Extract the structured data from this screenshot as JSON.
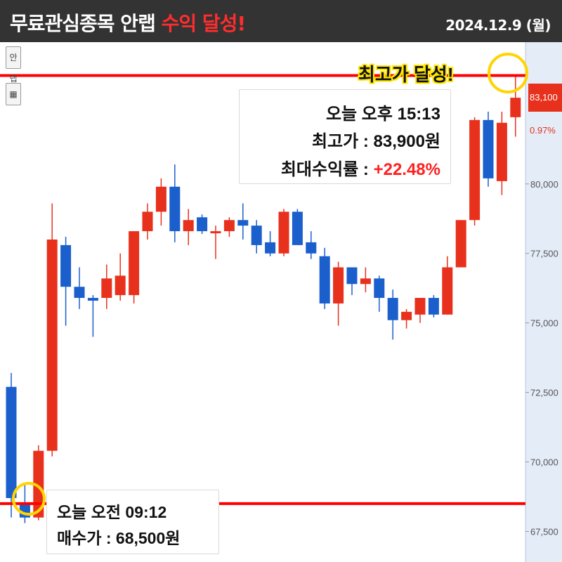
{
  "header": {
    "title_main": "무료관심종목 안랩 ",
    "title_highlight": "수익 달성!",
    "date": "2024.12.9 (월)"
  },
  "toolbar": {
    "name_tag": "안랩",
    "calc_icon": "calculator-icon"
  },
  "colors": {
    "up": "#e8311d",
    "down": "#1a5fcc",
    "line": "#ff0000",
    "highlight": "#ffd400",
    "header_bg": "#333333"
  },
  "peak_callout": {
    "time": "오늘 오후 15:13",
    "high_price": "최고가 : 83,900원",
    "max_return_label": "최대수익률 : ",
    "max_return_value": "+22.48%"
  },
  "buy_callout": {
    "time": "오늘 오전 09:12",
    "buy_price": "매수가 : 68,500원"
  },
  "peak_label": "최고가 달성!",
  "chart_data": {
    "type": "candlestick",
    "y_ticks": [
      67500,
      70000,
      72500,
      75000,
      77500,
      80000
    ],
    "y_tick_labels": [
      "67,500",
      "70,000",
      "72,500",
      "75,000",
      "77,500",
      "80,000"
    ],
    "ylim": [
      66400,
      85100
    ],
    "current_price_label": "83,100",
    "change_label": "0.97%",
    "reference_lines": [
      {
        "name": "high",
        "value": 83900
      },
      {
        "name": "buy",
        "value": 68500
      }
    ],
    "candles": [
      {
        "o": 72700,
        "h": 73200,
        "l": 68000,
        "c": 68700
      },
      {
        "o": 68500,
        "h": 69200,
        "l": 67800,
        "c": 68000
      },
      {
        "o": 68000,
        "h": 70600,
        "l": 67900,
        "c": 70400
      },
      {
        "o": 70400,
        "h": 79300,
        "l": 70200,
        "c": 78000
      },
      {
        "o": 77800,
        "h": 78100,
        "l": 74900,
        "c": 76300
      },
      {
        "o": 76300,
        "h": 77000,
        "l": 75500,
        "c": 75900
      },
      {
        "o": 75900,
        "h": 76000,
        "l": 74500,
        "c": 75800
      },
      {
        "o": 75900,
        "h": 77100,
        "l": 75500,
        "c": 76600
      },
      {
        "o": 76000,
        "h": 77500,
        "l": 75800,
        "c": 76700
      },
      {
        "o": 76000,
        "h": 78300,
        "l": 75700,
        "c": 78300
      },
      {
        "o": 78300,
        "h": 79300,
        "l": 78000,
        "c": 79000
      },
      {
        "o": 79000,
        "h": 80200,
        "l": 78500,
        "c": 79900
      },
      {
        "o": 79900,
        "h": 80700,
        "l": 77900,
        "c": 78300
      },
      {
        "o": 78300,
        "h": 79100,
        "l": 77800,
        "c": 78700
      },
      {
        "o": 78800,
        "h": 78900,
        "l": 78200,
        "c": 78300
      },
      {
        "o": 78300,
        "h": 78500,
        "l": 77300,
        "c": 78300
      },
      {
        "o": 78300,
        "h": 78800,
        "l": 78100,
        "c": 78700
      },
      {
        "o": 78700,
        "h": 79300,
        "l": 78000,
        "c": 78500
      },
      {
        "o": 78500,
        "h": 78700,
        "l": 77500,
        "c": 77800
      },
      {
        "o": 77900,
        "h": 78300,
        "l": 77400,
        "c": 77500
      },
      {
        "o": 77500,
        "h": 79100,
        "l": 77400,
        "c": 79000
      },
      {
        "o": 79000,
        "h": 79100,
        "l": 77900,
        "c": 77800
      },
      {
        "o": 77900,
        "h": 78300,
        "l": 77300,
        "c": 77500
      },
      {
        "o": 77400,
        "h": 77700,
        "l": 75500,
        "c": 75700
      },
      {
        "o": 75700,
        "h": 77200,
        "l": 74900,
        "c": 77000
      },
      {
        "o": 77000,
        "h": 77000,
        "l": 76000,
        "c": 76400
      },
      {
        "o": 76400,
        "h": 77000,
        "l": 76100,
        "c": 76600
      },
      {
        "o": 76600,
        "h": 76700,
        "l": 75400,
        "c": 75900
      },
      {
        "o": 75900,
        "h": 76200,
        "l": 74400,
        "c": 75100
      },
      {
        "o": 75100,
        "h": 75500,
        "l": 74800,
        "c": 75400
      },
      {
        "o": 75300,
        "h": 75900,
        "l": 75000,
        "c": 75900
      },
      {
        "o": 75900,
        "h": 76000,
        "l": 75200,
        "c": 75300
      },
      {
        "o": 75300,
        "h": 77400,
        "l": 75300,
        "c": 77000
      },
      {
        "o": 77000,
        "h": 78700,
        "l": 77000,
        "c": 78700
      },
      {
        "o": 78700,
        "h": 82400,
        "l": 78500,
        "c": 82300
      },
      {
        "o": 82300,
        "h": 82600,
        "l": 79900,
        "c": 80200
      },
      {
        "o": 80100,
        "h": 82600,
        "l": 79600,
        "c": 82200
      },
      {
        "o": 82400,
        "h": 83900,
        "l": 81700,
        "c": 83100
      }
    ]
  }
}
